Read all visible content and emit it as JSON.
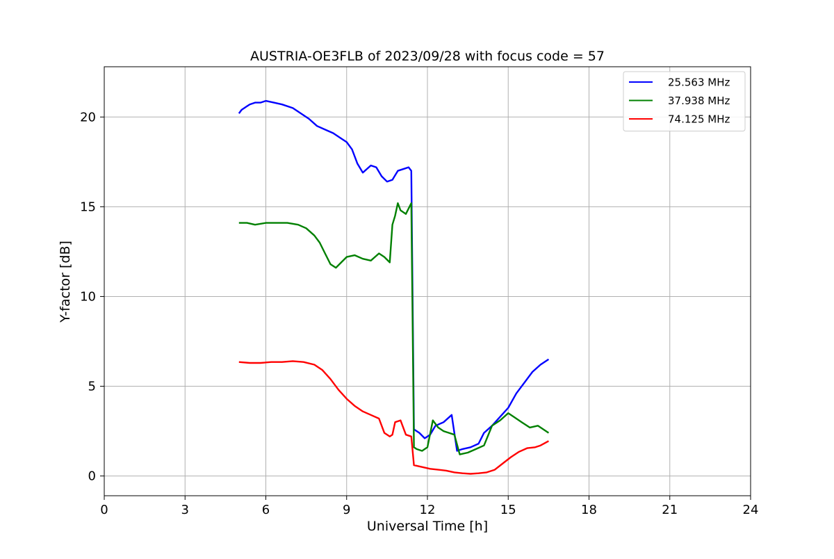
{
  "chart_data": {
    "type": "line",
    "title": "AUSTRIA-OE3FLB of 2023/09/28 with focus code = 57",
    "xlabel": "Universal Time [h]",
    "ylabel": "Y-factor [dB]",
    "xlim": [
      0,
      24
    ],
    "ylim": [
      -1.1,
      22.8
    ],
    "xticks": [
      0,
      3,
      6,
      9,
      12,
      15,
      18,
      21,
      24
    ],
    "yticks": [
      0,
      5,
      10,
      15,
      20
    ],
    "grid": true,
    "legend_position": "top-right",
    "series": [
      {
        "name": "25.563 MHz",
        "color": "#0000ff",
        "x": [
          5.0,
          5.1,
          5.2,
          5.3,
          5.4,
          5.6,
          5.8,
          6.0,
          6.3,
          6.6,
          7.0,
          7.3,
          7.6,
          7.9,
          8.2,
          8.5,
          8.8,
          9.0,
          9.2,
          9.4,
          9.6,
          9.9,
          10.1,
          10.3,
          10.5,
          10.7,
          10.9,
          11.1,
          11.3,
          11.4,
          11.5,
          11.7,
          11.9,
          12.1,
          12.3,
          12.6,
          12.9,
          13.1,
          13.3,
          13.6,
          13.9,
          14.1,
          14.4,
          14.7,
          15.0,
          15.3,
          15.6,
          15.9,
          16.2,
          16.5
        ],
        "y": [
          20.2,
          20.4,
          20.5,
          20.6,
          20.7,
          20.8,
          20.8,
          20.9,
          20.8,
          20.7,
          20.5,
          20.2,
          19.9,
          19.5,
          19.3,
          19.1,
          18.8,
          18.6,
          18.2,
          17.4,
          16.9,
          17.3,
          17.2,
          16.7,
          16.4,
          16.5,
          17.0,
          17.1,
          17.2,
          17.0,
          2.6,
          2.4,
          2.1,
          2.3,
          2.8,
          3.0,
          3.4,
          1.4,
          1.5,
          1.6,
          1.8,
          2.4,
          2.8,
          3.3,
          3.8,
          4.6,
          5.2,
          5.8,
          6.2,
          6.5
        ]
      },
      {
        "name": "37.938 MHz",
        "color": "#008000",
        "x": [
          5.0,
          5.3,
          5.6,
          6.0,
          6.4,
          6.8,
          7.2,
          7.5,
          7.8,
          8.0,
          8.2,
          8.4,
          8.6,
          8.8,
          9.0,
          9.3,
          9.6,
          9.9,
          10.2,
          10.4,
          10.6,
          10.7,
          10.8,
          10.9,
          11.0,
          11.2,
          11.4,
          11.5,
          11.6,
          11.8,
          12.0,
          12.2,
          12.4,
          12.6,
          12.8,
          13.0,
          13.2,
          13.5,
          13.8,
          14.1,
          14.4,
          14.7,
          15.0,
          15.2,
          15.5,
          15.8,
          16.1,
          16.5
        ],
        "y": [
          14.1,
          14.1,
          14.0,
          14.1,
          14.1,
          14.1,
          14.0,
          13.8,
          13.4,
          13.0,
          12.4,
          11.8,
          11.6,
          11.9,
          12.2,
          12.3,
          12.1,
          12.0,
          12.4,
          12.2,
          11.9,
          14.0,
          14.5,
          15.2,
          14.8,
          14.6,
          15.2,
          1.6,
          1.5,
          1.4,
          1.6,
          3.1,
          2.7,
          2.5,
          2.4,
          2.3,
          1.2,
          1.3,
          1.5,
          1.7,
          2.8,
          3.1,
          3.5,
          3.3,
          3.0,
          2.7,
          2.8,
          2.4
        ]
      },
      {
        "name": "74.125 MHz",
        "color": "#ff0000",
        "x": [
          5.0,
          5.4,
          5.8,
          6.2,
          6.6,
          7.0,
          7.4,
          7.8,
          8.1,
          8.4,
          8.7,
          9.0,
          9.3,
          9.6,
          9.9,
          10.2,
          10.4,
          10.6,
          10.7,
          10.8,
          11.0,
          11.2,
          11.4,
          11.5,
          11.8,
          12.1,
          12.4,
          12.7,
          13.0,
          13.3,
          13.6,
          13.9,
          14.2,
          14.5,
          14.8,
          15.1,
          15.4,
          15.7,
          16.0,
          16.2,
          16.5
        ],
        "y": [
          6.35,
          6.3,
          6.3,
          6.35,
          6.35,
          6.4,
          6.35,
          6.2,
          5.9,
          5.4,
          4.8,
          4.3,
          3.9,
          3.6,
          3.4,
          3.2,
          2.4,
          2.2,
          2.3,
          3.0,
          3.1,
          2.3,
          2.2,
          0.6,
          0.5,
          0.4,
          0.35,
          0.3,
          0.2,
          0.15,
          0.12,
          0.15,
          0.2,
          0.35,
          0.7,
          1.05,
          1.35,
          1.55,
          1.6,
          1.7,
          1.95
        ]
      }
    ]
  }
}
